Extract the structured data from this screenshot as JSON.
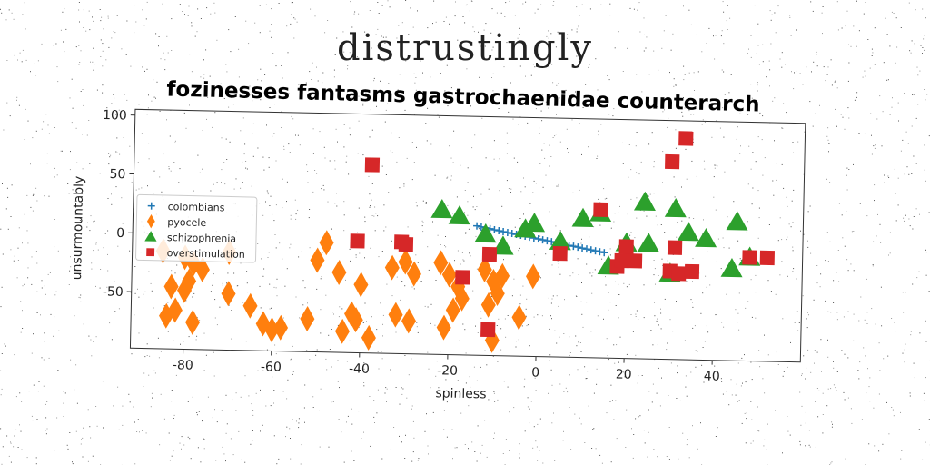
{
  "suptitle": "distrustingly",
  "chart_data": {
    "type": "scatter",
    "title": "fozinesses fantasms gastrochaenidae counterarch",
    "xlabel": "spinless",
    "ylabel": "unsurmountably",
    "xlim": [
      -92,
      60
    ],
    "ylim": [
      -98,
      105
    ],
    "xticks": [
      -80,
      -60,
      -40,
      -20,
      0,
      20,
      40
    ],
    "yticks": [
      -50,
      0,
      50,
      100
    ],
    "grid": false,
    "legend": "center-left",
    "series": [
      {
        "name": "colombians",
        "marker": "plus",
        "color": "#1f77b4",
        "x": [
          -14,
          -13,
          -12,
          -11,
          -10,
          -9,
          -8,
          -7,
          -6,
          -5,
          -4,
          -3,
          -2,
          -1,
          0,
          1,
          2,
          3,
          4,
          5,
          6,
          7,
          8,
          9,
          10,
          11,
          12,
          13,
          14,
          15
        ],
        "y": [
          12,
          11.2,
          10.5,
          9.8,
          9,
          8.3,
          7.6,
          6.9,
          6.2,
          5.5,
          4.8,
          4.1,
          3.4,
          2.7,
          2,
          1.3,
          0.6,
          -0.1,
          -0.8,
          -1.5,
          -2.2,
          -2.9,
          -3.6,
          -4.3,
          -5,
          -5.7,
          -6.4,
          -7.1,
          -7.8,
          -8.5
        ]
      },
      {
        "name": "pyocele",
        "marker": "diamond",
        "color": "#ff7f0e",
        "x": [
          -85,
          -80,
          -78,
          -76,
          -83,
          -80,
          -82,
          -78,
          -84,
          -79,
          -70,
          -65,
          -62,
          -58,
          -70,
          -60,
          -52,
          -50,
          -45,
          -48,
          -40,
          -42,
          -38,
          -41,
          -44,
          -33,
          -30,
          -28,
          -32,
          -29,
          -22,
          -20,
          -18,
          -17,
          -19,
          -21,
          -12,
          -10,
          -9,
          -11,
          -10,
          -8,
          -4,
          -1
        ],
        "y": [
          -15,
          -20,
          -25,
          -30,
          -45,
          -48,
          -65,
          -75,
          -70,
          -40,
          -15,
          -60,
          -75,
          -78,
          -50,
          -80,
          -70,
          -20,
          -30,
          -5,
          -40,
          -65,
          -85,
          -70,
          -80,
          -25,
          -20,
          -30,
          -65,
          -70,
          -20,
          -30,
          -40,
          -50,
          -60,
          -75,
          -25,
          -35,
          -45,
          -55,
          -85,
          -30,
          -65,
          -30
        ]
      },
      {
        "name": "schizophrenia",
        "marker": "triangle",
        "color": "#2ca02c",
        "x": [
          -22,
          -18,
          -12,
          -8,
          -3,
          -1,
          5,
          10,
          14,
          16,
          20,
          24,
          25,
          30,
          31,
          34,
          38,
          44,
          45,
          48
        ],
        "y": [
          25,
          20,
          5,
          -5,
          10,
          15,
          0,
          20,
          25,
          -20,
          0,
          35,
          0,
          -25,
          30,
          10,
          5,
          -20,
          20,
          -10
        ],
        "sizes": [
          1,
          1,
          1,
          1,
          1,
          1,
          1,
          1,
          1,
          1,
          1,
          1,
          1,
          1,
          1,
          1,
          1,
          1,
          1,
          1
        ]
      },
      {
        "name": "overstimulation",
        "marker": "square",
        "color": "#d62728",
        "x": [
          -38,
          -41,
          -31,
          -30,
          -17,
          -11,
          -11,
          5,
          14,
          18,
          19,
          20,
          22,
          30,
          31,
          30,
          32,
          35,
          48,
          52,
          33
        ],
        "y": [
          62,
          -3,
          -3,
          -5,
          -32,
          -12,
          -76,
          -10,
          28,
          -20,
          -15,
          -3,
          -15,
          70,
          -3,
          -23,
          -25,
          -23,
          -10,
          -10,
          90
        ]
      }
    ]
  }
}
